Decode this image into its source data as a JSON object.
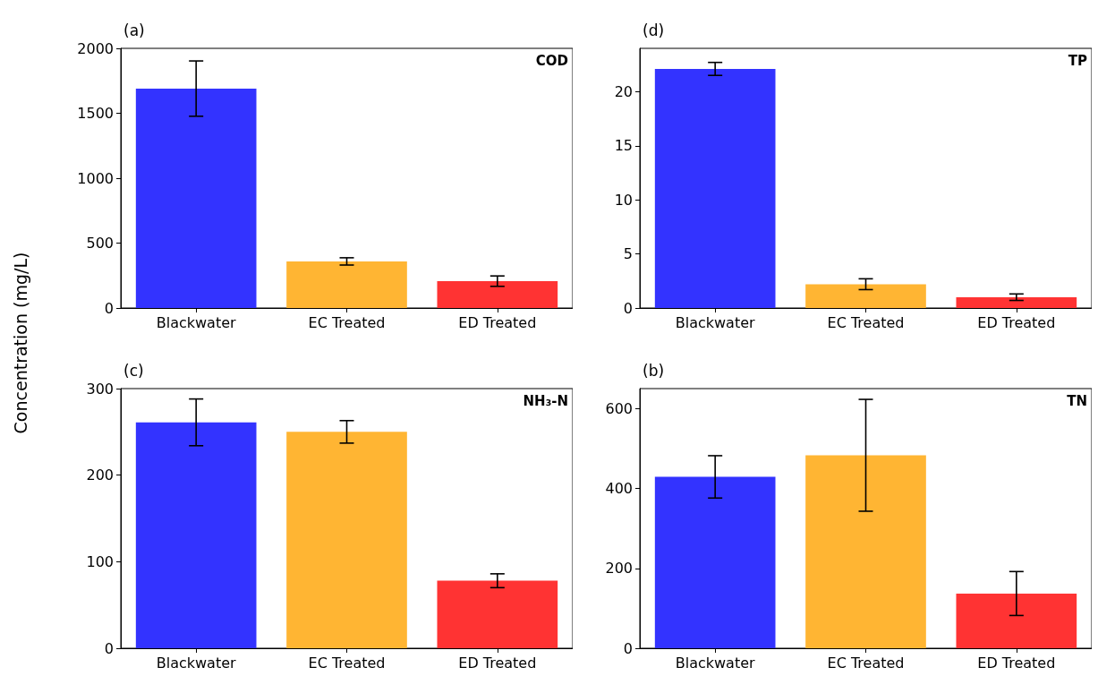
{
  "chart_data": [
    {
      "type": "bar",
      "title": "(a)",
      "ylabel": "Concentration (mg/L)",
      "annotations": [
        "COD"
      ],
      "categories": [
        "Blackwater",
        "EC Treated",
        "ED Treated"
      ],
      "values": [
        1690,
        359,
        207
      ],
      "errors": [
        213,
        28,
        40
      ],
      "colors": [
        "#3333ff",
        "#ffb533",
        "#ff3333"
      ],
      "ylim": [
        0,
        2000
      ],
      "yticks": [
        0,
        500,
        1000,
        1500,
        2000
      ],
      "grid": false
    },
    {
      "type": "bar",
      "title": "(d)",
      "annotations": [
        "TP"
      ],
      "categories": [
        "Blackwater",
        "EC Treated",
        "ED Treated"
      ],
      "values": [
        22.1,
        2.2,
        1.0
      ],
      "errors": [
        0.6,
        0.5,
        0.3
      ],
      "colors": [
        "#3333ff",
        "#ffb533",
        "#ff3333"
      ],
      "ylim": [
        0,
        24
      ],
      "yticks": [
        0,
        5,
        10,
        15,
        20
      ],
      "grid": false
    },
    {
      "type": "bar",
      "title": "(c)",
      "annotations": [
        "NH₃-N"
      ],
      "categories": [
        "Blackwater",
        "EC Treated",
        "ED Treated"
      ],
      "values": [
        261,
        250,
        78
      ],
      "errors": [
        27,
        13,
        8
      ],
      "colors": [
        "#3333ff",
        "#ffb533",
        "#ff3333"
      ],
      "ylim": [
        0,
        300
      ],
      "yticks": [
        0,
        100,
        200,
        300
      ],
      "grid": false
    },
    {
      "type": "bar",
      "title": "(b)",
      "annotations": [
        "TN"
      ],
      "categories": [
        "Blackwater",
        "EC Treated",
        "ED Treated"
      ],
      "values": [
        429,
        483,
        137
      ],
      "errors": [
        53,
        140,
        55
      ],
      "colors": [
        "#3333ff",
        "#ffb533",
        "#ff3333"
      ],
      "ylim": [
        0,
        650
      ],
      "yticks": [
        0,
        200,
        400,
        600
      ],
      "grid": false
    }
  ]
}
